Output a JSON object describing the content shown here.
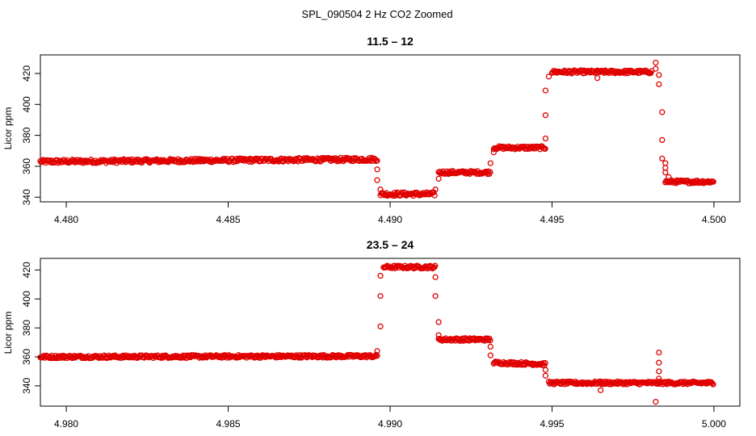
{
  "main_title": "SPL_090504  2 Hz CO2 Zoomed",
  "chart_data": [
    {
      "type": "scatter",
      "title": "11.5 – 12",
      "xlabel": "",
      "ylabel": "Licor ppm",
      "xlim": [
        4.4792,
        4.5008
      ],
      "ylim": [
        337,
        432
      ],
      "xticks": [
        4.48,
        4.485,
        4.49,
        4.495,
        4.5
      ],
      "xtick_labels": [
        "4.480",
        "4.485",
        "4.490",
        "4.495",
        "4.500"
      ],
      "yticks": [
        340,
        360,
        380,
        400,
        420
      ],
      "ytick_labels": [
        "340",
        "360",
        "380",
        "400",
        "420"
      ],
      "point_color": "#e00000",
      "segments": [
        {
          "x0": 4.4792,
          "x1": 4.4896,
          "y0": 363,
          "y1": 364.5,
          "noise": 1.2
        },
        {
          "x0": 4.4897,
          "x1": 4.4914,
          "y0": 342,
          "y1": 342,
          "noise": 1.2
        },
        {
          "x0": 4.4915,
          "x1": 4.4931,
          "y0": 356,
          "y1": 356,
          "noise": 1.0
        },
        {
          "x0": 4.4932,
          "x1": 4.4948,
          "y0": 372,
          "y1": 372,
          "noise": 1.0
        },
        {
          "x0": 4.495,
          "x1": 4.4981,
          "y0": 421,
          "y1": 421,
          "noise": 1.0
        },
        {
          "x0": 4.4985,
          "x1": 4.5,
          "y0": 350,
          "y1": 350,
          "noise": 1.0
        }
      ],
      "transition_points": [
        {
          "x": 4.4896,
          "y": 358
        },
        {
          "x": 4.4896,
          "y": 351
        },
        {
          "x": 4.4897,
          "y": 345
        },
        {
          "x": 4.4914,
          "y": 345
        },
        {
          "x": 4.4915,
          "y": 352
        },
        {
          "x": 4.4931,
          "y": 362
        },
        {
          "x": 4.4932,
          "y": 369
        },
        {
          "x": 4.4948,
          "y": 378
        },
        {
          "x": 4.4948,
          "y": 393
        },
        {
          "x": 4.4948,
          "y": 409
        },
        {
          "x": 4.4949,
          "y": 418
        },
        {
          "x": 4.4964,
          "y": 417
        },
        {
          "x": 4.4982,
          "y": 427
        },
        {
          "x": 4.4982,
          "y": 423
        },
        {
          "x": 4.4983,
          "y": 419
        },
        {
          "x": 4.4983,
          "y": 413
        },
        {
          "x": 4.4984,
          "y": 395
        },
        {
          "x": 4.4984,
          "y": 377
        },
        {
          "x": 4.4984,
          "y": 365
        },
        {
          "x": 4.4985,
          "y": 362
        },
        {
          "x": 4.4985,
          "y": 359
        },
        {
          "x": 4.4985,
          "y": 356
        },
        {
          "x": 4.4986,
          "y": 353
        }
      ]
    },
    {
      "type": "scatter",
      "title": "23.5 – 24",
      "xlabel": "",
      "ylabel": "Licor ppm",
      "xlim": [
        4.9792,
        5.0008
      ],
      "ylim": [
        326,
        428
      ],
      "xticks": [
        4.98,
        4.985,
        4.99,
        4.995,
        5.0
      ],
      "xtick_labels": [
        "4.980",
        "4.985",
        "4.990",
        "4.995",
        "5.000"
      ],
      "yticks": [
        340,
        360,
        380,
        400,
        420
      ],
      "ytick_labels": [
        "340",
        "360",
        "380",
        "400",
        "420"
      ],
      "point_color": "#e00000",
      "segments": [
        {
          "x0": 4.9792,
          "x1": 4.9896,
          "y0": 360,
          "y1": 360.5,
          "noise": 1.0
        },
        {
          "x0": 4.9898,
          "x1": 4.9914,
          "y0": 422,
          "y1": 422,
          "noise": 1.0
        },
        {
          "x0": 4.9915,
          "x1": 4.9931,
          "y0": 372,
          "y1": 372,
          "noise": 1.0
        },
        {
          "x0": 4.9932,
          "x1": 4.9948,
          "y0": 356,
          "y1": 355,
          "noise": 1.0
        },
        {
          "x0": 4.9949,
          "x1": 5.0,
          "y0": 342,
          "y1": 342,
          "noise": 1.0
        }
      ],
      "transition_points": [
        {
          "x": 4.9896,
          "y": 364
        },
        {
          "x": 4.9897,
          "y": 381
        },
        {
          "x": 4.9897,
          "y": 402
        },
        {
          "x": 4.9897,
          "y": 416
        },
        {
          "x": 4.9914,
          "y": 415
        },
        {
          "x": 4.9914,
          "y": 402
        },
        {
          "x": 4.9915,
          "y": 384
        },
        {
          "x": 4.9915,
          "y": 375
        },
        {
          "x": 4.9931,
          "y": 367
        },
        {
          "x": 4.9931,
          "y": 361
        },
        {
          "x": 4.9948,
          "y": 351
        },
        {
          "x": 4.9948,
          "y": 347
        },
        {
          "x": 4.9965,
          "y": 337
        },
        {
          "x": 4.9965,
          "y": 343
        },
        {
          "x": 4.9982,
          "y": 329
        },
        {
          "x": 4.9983,
          "y": 363
        },
        {
          "x": 4.9983,
          "y": 356
        },
        {
          "x": 4.9983,
          "y": 350
        },
        {
          "x": 4.9983,
          "y": 345
        }
      ]
    }
  ]
}
